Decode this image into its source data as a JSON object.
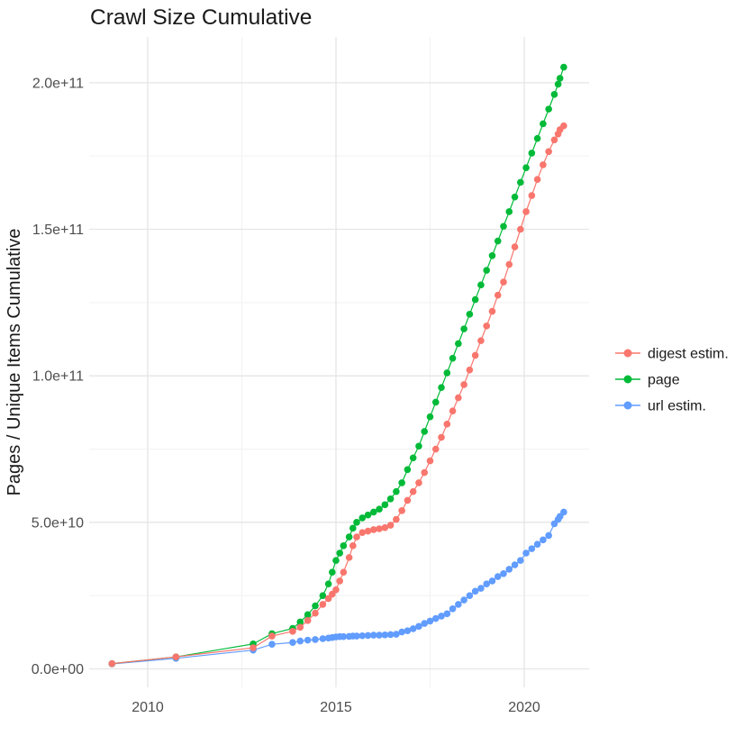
{
  "chart": {
    "title": "Crawl Size Cumulative",
    "ylabel": "Pages / Unique Items Cumulative",
    "xlabel": "",
    "legend_position": "right",
    "background_color": "#ffffff",
    "grid_major_color": "#e5e5e5",
    "grid_minor_color": "#f2f2f2",
    "tick_text_color": "#4d4d4d",
    "title_text_color": "#1a1a1a"
  },
  "chart_data": {
    "type": "line",
    "title": "Crawl Size Cumulative",
    "xlabel": "",
    "ylabel": "Pages / Unique Items Cumulative",
    "value_unit": "1e9 (values stored in billions)",
    "xlim": [
      2008.45,
      2021.65
    ],
    "ylim_e9": [
      -10,
      215
    ],
    "grid": true,
    "legend_position": "right",
    "x_tick_labels": [
      "2010",
      "2015",
      "2020"
    ],
    "x_tick_years": [
      2010,
      2015,
      2020
    ],
    "x_minor_years": [
      2012.5,
      2017.5
    ],
    "y_tick_labels": [
      "0.0e+00",
      "5.0e+10",
      "1.0e+11",
      "1.5e+11",
      "2.0e+11"
    ],
    "y_tick_values_e9": [
      0,
      50,
      100,
      150,
      200
    ],
    "y_minor_values_e9": [
      25,
      75,
      125,
      175
    ],
    "x_years": [
      2009.05,
      2010.75,
      2012.8,
      2013.3,
      2013.85,
      2014.05,
      2014.25,
      2014.45,
      2014.65,
      2014.8,
      2014.9,
      2015.0,
      2015.1,
      2015.2,
      2015.35,
      2015.45,
      2015.55,
      2015.7,
      2015.85,
      2016.0,
      2016.15,
      2016.3,
      2016.45,
      2016.6,
      2016.75,
      2016.9,
      2017.05,
      2017.2,
      2017.35,
      2017.5,
      2017.65,
      2017.8,
      2017.95,
      2018.1,
      2018.25,
      2018.4,
      2018.55,
      2018.7,
      2018.85,
      2019.0,
      2019.15,
      2019.3,
      2019.45,
      2019.6,
      2019.75,
      2019.9,
      2020.05,
      2020.2,
      2020.35,
      2020.5,
      2020.65,
      2020.8,
      2020.9,
      2020.95,
      2021.05
    ],
    "series": [
      {
        "name": "digest estim.",
        "color": "#F8766D",
        "values_e9": [
          1.8,
          4.1,
          7.2,
          11.2,
          12.8,
          14.2,
          16.5,
          19,
          22,
          24,
          25.5,
          27,
          30,
          33,
          38,
          42,
          45,
          46.5,
          47,
          47.5,
          47.8,
          48.2,
          49,
          51,
          54,
          57.5,
          60.5,
          63.5,
          67,
          71,
          75,
          79,
          83.5,
          88,
          92.5,
          97,
          102,
          107,
          112,
          117,
          122,
          127.5,
          132,
          138,
          144,
          150,
          156,
          161.5,
          167,
          172,
          176.5,
          180.5,
          182.5,
          184,
          185.3
        ]
      },
      {
        "name": "page",
        "color": "#00BA38",
        "values_e9": [
          1.8,
          4.1,
          8.5,
          12,
          13.8,
          16,
          18.5,
          21.5,
          25,
          29,
          33,
          37,
          39.5,
          42,
          45,
          48,
          50,
          51.5,
          52.5,
          53.5,
          54.5,
          56,
          58,
          60.5,
          63.5,
          68,
          72,
          76,
          81,
          86,
          91,
          96,
          101,
          106,
          111,
          116,
          121,
          126,
          131,
          136,
          141,
          146,
          151,
          156,
          161,
          166,
          171,
          176,
          181,
          186,
          191,
          196,
          199.5,
          201.5,
          205.3
        ]
      },
      {
        "name": "url estim.",
        "color": "#619CFF",
        "values_e9": [
          1.7,
          3.6,
          6.4,
          8.4,
          9.0,
          9.5,
          9.8,
          10.0,
          10.3,
          10.5,
          10.7,
          10.9,
          11.0,
          11.0,
          11.1,
          11.2,
          11.2,
          11.3,
          11.4,
          11.5,
          11.5,
          11.6,
          11.7,
          11.8,
          12.6,
          13.0,
          13.7,
          14.5,
          15.5,
          16.3,
          17.2,
          18.0,
          18.8,
          20.5,
          22.0,
          23.5,
          25.0,
          26.5,
          27.5,
          29.0,
          30.0,
          31.5,
          32.5,
          34.0,
          35.5,
          37.0,
          39.5,
          41.0,
          42.5,
          44.0,
          45.5,
          49.5,
          51.0,
          52.0,
          53.5
        ]
      }
    ]
  }
}
